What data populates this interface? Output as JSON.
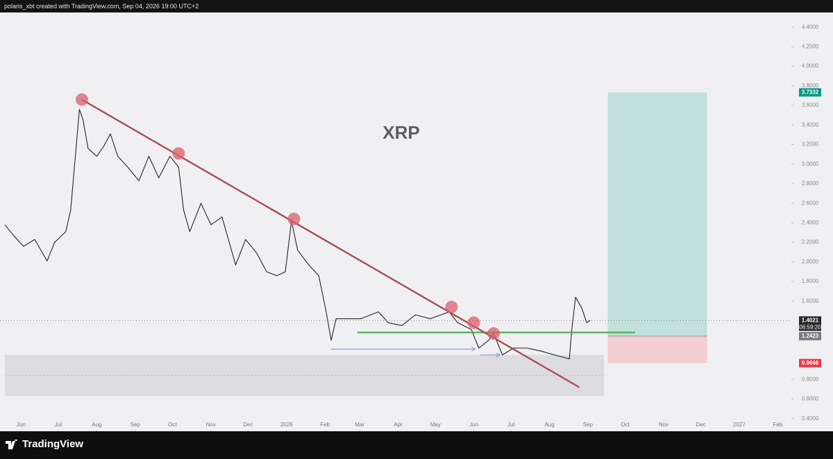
{
  "header": {
    "text": "polaris_xbt created with TradingView.com, Sep 04, 2026 19:00 UTC+2"
  },
  "footer": {
    "brand": "TradingView"
  },
  "chart_data": {
    "type": "line",
    "title": "XRP",
    "color": "#222222",
    "x": [
      -13,
      -6,
      2,
      11,
      21,
      27,
      36,
      40,
      43,
      47,
      50,
      54,
      61,
      67,
      72,
      78,
      86,
      95,
      103,
      111,
      120,
      127,
      131,
      136,
      145,
      153,
      162,
      173,
      181,
      190,
      198,
      206,
      213,
      218,
      223,
      232,
      240,
      246,
      250,
      254,
      262,
      274,
      288,
      296,
      307,
      318,
      330,
      345,
      352,
      363,
      369,
      377,
      381,
      388,
      397,
      408,
      419,
      430,
      442,
      444,
      447,
      452,
      456,
      459
    ],
    "values": [
      2.38,
      2.27,
      2.16,
      2.23,
      2.01,
      2.2,
      2.31,
      2.53,
      2.97,
      3.56,
      3.45,
      3.16,
      3.08,
      3.19,
      3.31,
      3.08,
      2.97,
      2.83,
      3.08,
      2.86,
      3.08,
      2.97,
      2.53,
      2.31,
      2.6,
      2.38,
      2.46,
      1.97,
      2.23,
      2.09,
      1.9,
      1.86,
      1.9,
      2.42,
      2.12,
      1.97,
      1.86,
      1.49,
      1.2,
      1.42,
      1.42,
      1.42,
      1.49,
      1.38,
      1.35,
      1.46,
      1.42,
      1.49,
      1.38,
      1.31,
      1.12,
      1.2,
      1.27,
      1.05,
      1.12,
      1.12,
      1.09,
      1.05,
      1.01,
      1.31,
      1.64,
      1.53,
      1.38,
      1.4021
    ],
    "xlim": [
      -17,
      621
    ],
    "ylim": [
      0.27,
      4.55
    ],
    "xticks": [
      {
        "value": 0,
        "label": "Jun"
      },
      {
        "value": 30,
        "label": "Jul"
      },
      {
        "value": 61,
        "label": "Aug"
      },
      {
        "value": 92,
        "label": "Sep"
      },
      {
        "value": 122,
        "label": "Oct"
      },
      {
        "value": 153,
        "label": "Nov"
      },
      {
        "value": 183,
        "label": "Dec"
      },
      {
        "value": 214,
        "label": "2026"
      },
      {
        "value": 245,
        "label": "Feb"
      },
      {
        "value": 273,
        "label": "Mar"
      },
      {
        "value": 304,
        "label": "Apr"
      },
      {
        "value": 334,
        "label": "May"
      },
      {
        "value": 365,
        "label": "Jun"
      },
      {
        "value": 395,
        "label": "Jul"
      },
      {
        "value": 426,
        "label": "Aug"
      },
      {
        "value": 457,
        "label": "Sep"
      },
      {
        "value": 487,
        "label": "Oct"
      },
      {
        "value": 518,
        "label": "Nov"
      },
      {
        "value": 548,
        "label": "Dec"
      },
      {
        "value": 579,
        "label": "2027"
      },
      {
        "value": 610,
        "label": "Feb"
      }
    ],
    "yticks": [
      {
        "value": 0.4,
        "label": "0.4000"
      },
      {
        "value": 0.6,
        "label": "0.6000"
      },
      {
        "value": 0.8,
        "label": "0.8000"
      },
      {
        "value": 1.6,
        "label": "1.6000"
      },
      {
        "value": 1.8,
        "label": "1.8000"
      },
      {
        "value": 2.0,
        "label": "2.0000"
      },
      {
        "value": 2.2,
        "label": "2.2000"
      },
      {
        "value": 2.4,
        "label": "2.4000"
      },
      {
        "value": 2.6,
        "label": "2.6000"
      },
      {
        "value": 2.8,
        "label": "2.8000"
      },
      {
        "value": 3.0,
        "label": "3.0000"
      },
      {
        "value": 3.2,
        "label": "3.2000"
      },
      {
        "value": 3.4,
        "label": "3.4000"
      },
      {
        "value": 3.6,
        "label": "3.6000"
      },
      {
        "value": 3.8,
        "label": "3.8000"
      },
      {
        "value": 4.0,
        "label": "4.0000"
      },
      {
        "value": 4.2,
        "label": "4.2000"
      },
      {
        "value": 4.4,
        "label": "4.4000"
      }
    ],
    "trendline": {
      "color": "#a84d57",
      "x": [
        49,
        450
      ],
      "values": [
        3.66,
        0.72
      ]
    },
    "touch_points": {
      "color": "#d9606c",
      "x": [
        49,
        127,
        220,
        347,
        365,
        381
      ],
      "values": [
        3.66,
        3.11,
        2.44,
        1.54,
        1.38,
        1.27
      ]
    },
    "support_line": {
      "color": "#4caf50",
      "x": [
        271,
        495
      ],
      "value": 1.28
    },
    "demand_zone": {
      "x": [
        -13,
        470
      ],
      "ylim": [
        0.63,
        1.05
      ],
      "mid": 0.84
    },
    "arrows": [
      {
        "x": [
          250,
          366
        ],
        "value": 1.11
      },
      {
        "x": [
          370,
          386
        ],
        "value": 1.05
      }
    ],
    "position": {
      "x": [
        473,
        553
      ],
      "target": 3.7332,
      "entry": 1.2423,
      "stop": 0.9666
    },
    "last_price": 1.4021,
    "countdown": "06:59:20"
  }
}
